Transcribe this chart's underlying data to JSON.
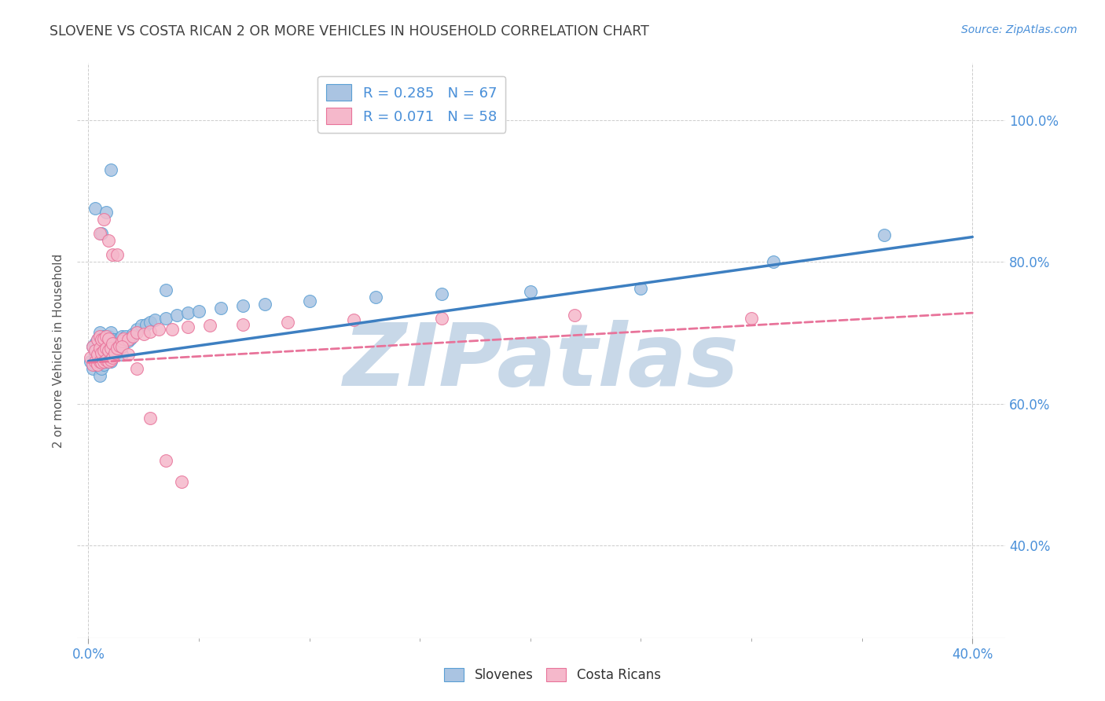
{
  "title": "SLOVENE VS COSTA RICAN 2 OR MORE VEHICLES IN HOUSEHOLD CORRELATION CHART",
  "source": "Source: ZipAtlas.com",
  "xlabel_ticks_labels": [
    "0.0%",
    "40.0%"
  ],
  "xlabel_ticks_pos": [
    0.0,
    0.4
  ],
  "ylabel_ticks": [
    "100.0%",
    "80.0%",
    "60.0%",
    "40.0%"
  ],
  "ylabel_ticks_pos": [
    1.0,
    0.8,
    0.6,
    0.4
  ],
  "ylabel_label": "2 or more Vehicles in Household",
  "xlim": [
    -0.005,
    0.415
  ],
  "ylim": [
    0.27,
    1.08
  ],
  "slovene_color": "#aac4e2",
  "costa_color": "#f5b8cb",
  "slovene_edge_color": "#5a9fd4",
  "costa_edge_color": "#e8739a",
  "slovene_line_color": "#3d7fc1",
  "costa_line_color": "#e8739a",
  "background_color": "#ffffff",
  "grid_color": "#c8c8c8",
  "watermark_color": "#c8d8e8",
  "title_color": "#404040",
  "axis_label_color": "#555555",
  "tick_color": "#4a90d9",
  "legend_text_color": "#4a90d9",
  "slovene_x": [
    0.001,
    0.002,
    0.002,
    0.003,
    0.003,
    0.003,
    0.004,
    0.004,
    0.004,
    0.005,
    0.005,
    0.005,
    0.005,
    0.006,
    0.006,
    0.006,
    0.007,
    0.007,
    0.007,
    0.007,
    0.008,
    0.008,
    0.008,
    0.009,
    0.009,
    0.009,
    0.01,
    0.01,
    0.01,
    0.011,
    0.011,
    0.012,
    0.012,
    0.013,
    0.014,
    0.015,
    0.015,
    0.016,
    0.017,
    0.018,
    0.019,
    0.02,
    0.022,
    0.024,
    0.026,
    0.028,
    0.03,
    0.035,
    0.04,
    0.045,
    0.05,
    0.06,
    0.07,
    0.08,
    0.1,
    0.13,
    0.16,
    0.2,
    0.25,
    0.31,
    0.36,
    0.003,
    0.004,
    0.006,
    0.008,
    0.01,
    0.035
  ],
  "slovene_y": [
    0.66,
    0.65,
    0.68,
    0.655,
    0.67,
    0.685,
    0.66,
    0.675,
    0.69,
    0.64,
    0.66,
    0.68,
    0.7,
    0.65,
    0.67,
    0.69,
    0.655,
    0.668,
    0.68,
    0.695,
    0.66,
    0.672,
    0.69,
    0.66,
    0.675,
    0.695,
    0.66,
    0.68,
    0.7,
    0.668,
    0.69,
    0.67,
    0.69,
    0.682,
    0.692,
    0.67,
    0.695,
    0.685,
    0.695,
    0.688,
    0.692,
    0.698,
    0.705,
    0.71,
    0.712,
    0.715,
    0.718,
    0.72,
    0.725,
    0.728,
    0.73,
    0.735,
    0.738,
    0.74,
    0.745,
    0.75,
    0.755,
    0.758,
    0.762,
    0.8,
    0.838,
    0.875,
    0.66,
    0.84,
    0.87,
    0.93,
    0.76
  ],
  "costa_x": [
    0.001,
    0.002,
    0.002,
    0.003,
    0.003,
    0.004,
    0.004,
    0.004,
    0.005,
    0.005,
    0.005,
    0.006,
    0.006,
    0.006,
    0.007,
    0.007,
    0.007,
    0.008,
    0.008,
    0.008,
    0.009,
    0.009,
    0.009,
    0.01,
    0.01,
    0.011,
    0.011,
    0.012,
    0.013,
    0.014,
    0.015,
    0.016,
    0.018,
    0.02,
    0.022,
    0.025,
    0.028,
    0.032,
    0.038,
    0.045,
    0.055,
    0.07,
    0.09,
    0.12,
    0.16,
    0.22,
    0.005,
    0.007,
    0.009,
    0.011,
    0.013,
    0.015,
    0.018,
    0.022,
    0.028,
    0.035,
    0.042,
    0.3
  ],
  "costa_y": [
    0.665,
    0.655,
    0.68,
    0.66,
    0.675,
    0.655,
    0.67,
    0.69,
    0.66,
    0.678,
    0.695,
    0.658,
    0.672,
    0.69,
    0.66,
    0.675,
    0.692,
    0.662,
    0.678,
    0.695,
    0.66,
    0.675,
    0.692,
    0.662,
    0.678,
    0.665,
    0.685,
    0.672,
    0.678,
    0.682,
    0.688,
    0.692,
    0.69,
    0.695,
    0.7,
    0.698,
    0.702,
    0.705,
    0.705,
    0.708,
    0.71,
    0.712,
    0.715,
    0.718,
    0.72,
    0.725,
    0.84,
    0.86,
    0.83,
    0.81,
    0.81,
    0.68,
    0.67,
    0.65,
    0.58,
    0.52,
    0.49,
    0.72
  ],
  "sl_line_x0": 0.0,
  "sl_line_x1": 0.4,
  "sl_line_y0": 0.66,
  "sl_line_y1": 0.835,
  "co_line_x0": 0.0,
  "co_line_x1": 0.4,
  "co_line_y0": 0.658,
  "co_line_y1": 0.728
}
